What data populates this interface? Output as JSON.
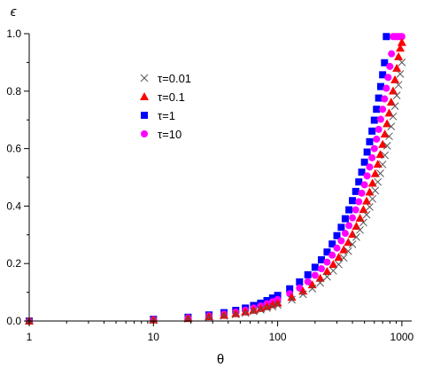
{
  "chart_data": {
    "type": "scatter",
    "xscale": "log",
    "xlim": [
      1,
      1200
    ],
    "ylim": [
      0,
      1.0
    ],
    "xlabel": "θ",
    "ylabel": "ϵ",
    "xticks": [
      1,
      10,
      100,
      1000
    ],
    "xtick_labels": [
      "1",
      "10",
      "100",
      "1000"
    ],
    "yticks": [
      0.0,
      0.2,
      0.4,
      0.6,
      0.8,
      1.0
    ],
    "ytick_labels": [
      "0.0",
      "0.2",
      "0.4",
      "0.6",
      "0.8",
      "1.0"
    ],
    "grid": false,
    "legend_position": "upper-left-center",
    "series": [
      {
        "name": "τ=0.01",
        "marker": "x",
        "color": "#555555",
        "x": [
          1,
          10,
          19,
          28,
          37,
          46,
          55,
          64,
          73,
          82,
          91,
          100,
          130,
          160,
          190,
          220,
          250,
          280,
          310,
          340,
          370,
          400,
          430,
          460,
          490,
          520,
          550,
          580,
          610,
          640,
          670,
          700,
          730,
          760,
          790,
          820,
          850,
          880,
          910,
          940,
          970,
          1000
        ],
        "y": [
          0,
          0.003,
          0.008,
          0.013,
          0.018,
          0.023,
          0.028,
          0.034,
          0.039,
          0.045,
          0.05,
          0.056,
          0.074,
          0.093,
          0.113,
          0.133,
          0.154,
          0.175,
          0.197,
          0.22,
          0.243,
          0.267,
          0.292,
          0.317,
          0.343,
          0.37,
          0.397,
          0.425,
          0.454,
          0.484,
          0.514,
          0.545,
          0.577,
          0.61,
          0.643,
          0.677,
          0.712,
          0.748,
          0.785,
          0.822,
          0.86,
          0.9
        ]
      },
      {
        "name": "τ=0.1",
        "marker": "triangle",
        "color": "#ff0000",
        "x": [
          1,
          10,
          19,
          28,
          37,
          46,
          55,
          64,
          73,
          82,
          91,
          100,
          130,
          160,
          190,
          220,
          250,
          280,
          310,
          340,
          370,
          400,
          430,
          460,
          490,
          520,
          550,
          580,
          610,
          640,
          670,
          700,
          730,
          760,
          790,
          820,
          850,
          880,
          910,
          940,
          970,
          1000
        ],
        "y": [
          0,
          0.004,
          0.009,
          0.015,
          0.02,
          0.026,
          0.032,
          0.038,
          0.044,
          0.05,
          0.057,
          0.063,
          0.083,
          0.104,
          0.126,
          0.149,
          0.173,
          0.197,
          0.222,
          0.248,
          0.274,
          0.302,
          0.33,
          0.358,
          0.388,
          0.418,
          0.449,
          0.48,
          0.513,
          0.546,
          0.58,
          0.615,
          0.651,
          0.687,
          0.724,
          0.762,
          0.801,
          0.84,
          0.88,
          0.92,
          0.95,
          0.97
        ]
      },
      {
        "name": "τ=1",
        "marker": "square",
        "color": "#0000ff",
        "x": [
          1,
          10,
          19,
          28,
          37,
          46,
          55,
          64,
          73,
          82,
          91,
          100,
          125,
          150,
          175,
          200,
          225,
          250,
          275,
          300,
          325,
          350,
          375,
          400,
          425,
          450,
          475,
          500,
          525,
          550,
          575,
          600,
          625,
          650,
          675,
          700,
          725,
          750
        ],
        "y": [
          0,
          0.006,
          0.013,
          0.021,
          0.029,
          0.037,
          0.045,
          0.054,
          0.062,
          0.071,
          0.08,
          0.089,
          0.112,
          0.136,
          0.161,
          0.187,
          0.213,
          0.24,
          0.268,
          0.297,
          0.326,
          0.356,
          0.387,
          0.419,
          0.451,
          0.484,
          0.518,
          0.553,
          0.588,
          0.624,
          0.661,
          0.699,
          0.737,
          0.776,
          0.816,
          0.857,
          0.899,
          0.99
        ]
      },
      {
        "name": "τ=10",
        "marker": "circle",
        "color": "#ff00ff",
        "x": [
          1,
          10,
          19,
          28,
          37,
          46,
          55,
          64,
          73,
          82,
          91,
          100,
          125,
          150,
          175,
          200,
          225,
          250,
          275,
          300,
          325,
          350,
          375,
          400,
          425,
          450,
          475,
          500,
          525,
          550,
          575,
          600,
          625,
          650,
          675,
          700,
          725,
          750,
          775,
          800,
          825,
          850,
          875,
          900,
          925,
          950,
          975,
          1000
        ],
        "y": [
          0,
          0.005,
          0.011,
          0.018,
          0.024,
          0.031,
          0.038,
          0.045,
          0.052,
          0.06,
          0.067,
          0.075,
          0.095,
          0.115,
          0.137,
          0.159,
          0.182,
          0.205,
          0.229,
          0.254,
          0.279,
          0.305,
          0.332,
          0.359,
          0.387,
          0.415,
          0.445,
          0.474,
          0.505,
          0.536,
          0.568,
          0.6,
          0.633,
          0.667,
          0.702,
          0.737,
          0.773,
          0.81,
          0.848,
          0.886,
          0.93,
          0.99,
          0.99,
          0.99,
          0.99,
          0.99,
          0.99,
          0.99
        ]
      }
    ]
  }
}
